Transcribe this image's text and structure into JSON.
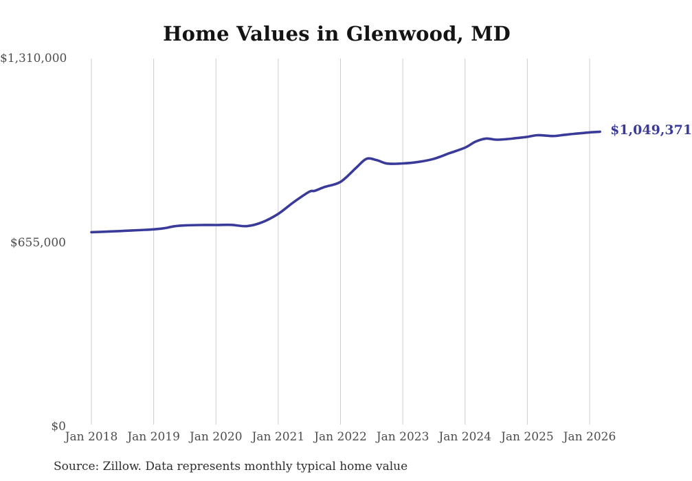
{
  "page": {
    "title": "Home Values in Glenwood, MD",
    "source_note": "Source: Zillow. Data represents monthly typical home value",
    "latest_value_label": "$1,049,371"
  },
  "colors": {
    "line": "#3a3a9a",
    "grid": "#cccccc",
    "axis_label": "#4d4d4d",
    "title_text": "#141414",
    "source_text": "#2e2e2e",
    "end_label_text": "#3a3a9a"
  },
  "chart_data": {
    "type": "line",
    "title": "Home Values in Glenwood, MD",
    "xlabel": "",
    "ylabel": "",
    "ylim": [
      0,
      1310000
    ],
    "grid": "vertical-only",
    "legend": "none",
    "y_ticks": [
      {
        "value": 1310000,
        "label": "$1,310,000"
      },
      {
        "value": 655000,
        "label": "$655,000"
      },
      {
        "value": 0,
        "label": "$0"
      }
    ],
    "x_tick_labels": [
      "Jan 2018",
      "Jan 2019",
      "Jan 2020",
      "Jan 2021",
      "Jan 2022",
      "Jan 2023",
      "Jan 2024",
      "Jan 2025",
      "Jan 2026"
    ],
    "end_label": "$1,049,371",
    "series": [
      {
        "name": "Monthly typical home value",
        "points": [
          {
            "date": "2018-01",
            "value": 692000
          },
          {
            "date": "2018-04",
            "value": 694000
          },
          {
            "date": "2018-07",
            "value": 696500
          },
          {
            "date": "2018-10",
            "value": 699000
          },
          {
            "date": "2019-01",
            "value": 702000
          },
          {
            "date": "2019-03",
            "value": 706000
          },
          {
            "date": "2019-05",
            "value": 713000
          },
          {
            "date": "2019-07",
            "value": 716000
          },
          {
            "date": "2019-10",
            "value": 717500
          },
          {
            "date": "2020-01",
            "value": 717500
          },
          {
            "date": "2020-04",
            "value": 718000
          },
          {
            "date": "2020-07",
            "value": 713500
          },
          {
            "date": "2020-10",
            "value": 728000
          },
          {
            "date": "2021-01",
            "value": 757000
          },
          {
            "date": "2021-04",
            "value": 799000
          },
          {
            "date": "2021-07",
            "value": 836000
          },
          {
            "date": "2021-08",
            "value": 839000
          },
          {
            "date": "2021-10",
            "value": 853000
          },
          {
            "date": "2022-01",
            "value": 871000
          },
          {
            "date": "2022-04",
            "value": 921000
          },
          {
            "date": "2022-06",
            "value": 953000
          },
          {
            "date": "2022-08",
            "value": 948000
          },
          {
            "date": "2022-10",
            "value": 936000
          },
          {
            "date": "2023-01",
            "value": 936500
          },
          {
            "date": "2023-04",
            "value": 942000
          },
          {
            "date": "2023-07",
            "value": 953000
          },
          {
            "date": "2023-10",
            "value": 973000
          },
          {
            "date": "2024-01",
            "value": 993000
          },
          {
            "date": "2024-03",
            "value": 1014000
          },
          {
            "date": "2024-05",
            "value": 1025000
          },
          {
            "date": "2024-07",
            "value": 1021000
          },
          {
            "date": "2024-09",
            "value": 1023000
          },
          {
            "date": "2024-11",
            "value": 1027000
          },
          {
            "date": "2025-01",
            "value": 1031000
          },
          {
            "date": "2025-03",
            "value": 1037000
          },
          {
            "date": "2025-06",
            "value": 1034000
          },
          {
            "date": "2025-08",
            "value": 1038000
          },
          {
            "date": "2025-10",
            "value": 1042000
          },
          {
            "date": "2026-01",
            "value": 1047000
          },
          {
            "date": "2026-03",
            "value": 1049371
          }
        ]
      }
    ]
  }
}
